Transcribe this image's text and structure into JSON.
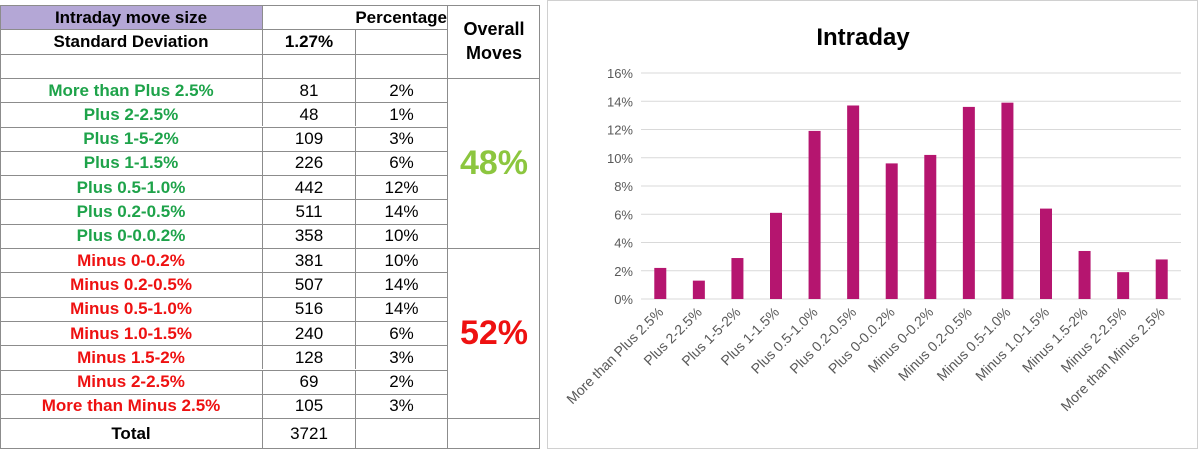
{
  "table": {
    "header": {
      "label": "Intraday move size",
      "percentage": "Percentage",
      "overall": [
        "Overall",
        "Moves"
      ]
    },
    "std_dev": {
      "label": "Standard Deviation",
      "value": "1.27%"
    },
    "rows": [
      {
        "label": "More than Plus 2.5%",
        "count": "81",
        "pct": "2%",
        "side": "plus"
      },
      {
        "label": "Plus 2-2.5%",
        "count": "48",
        "pct": "1%",
        "side": "plus"
      },
      {
        "label": "Plus 1-5-2%",
        "count": "109",
        "pct": "3%",
        "side": "plus"
      },
      {
        "label": "Plus 1-1.5%",
        "count": "226",
        "pct": "6%",
        "side": "plus"
      },
      {
        "label": "Plus 0.5-1.0%",
        "count": "442",
        "pct": "12%",
        "side": "plus"
      },
      {
        "label": "Plus 0.2-0.5%",
        "count": "511",
        "pct": "14%",
        "side": "plus"
      },
      {
        "label": "Plus 0-0.0.2%",
        "count": "358",
        "pct": "10%",
        "side": "plus"
      },
      {
        "label": "Minus 0-0.2%",
        "count": "381",
        "pct": "10%",
        "side": "minus"
      },
      {
        "label": "Minus 0.2-0.5%",
        "count": "507",
        "pct": "14%",
        "side": "minus"
      },
      {
        "label": "Minus 0.5-1.0%",
        "count": "516",
        "pct": "14%",
        "side": "minus"
      },
      {
        "label": "Minus 1.0-1.5%",
        "count": "240",
        "pct": "6%",
        "side": "minus"
      },
      {
        "label": "Minus 1.5-2%",
        "count": "128",
        "pct": "3%",
        "side": "minus"
      },
      {
        "label": "Minus 2-2.5%",
        "count": "69",
        "pct": "2%",
        "side": "minus"
      },
      {
        "label": "More than Minus 2.5%",
        "count": "105",
        "pct": "3%",
        "side": "minus"
      }
    ],
    "overall_plus": "48%",
    "overall_minus": "52%",
    "total": {
      "label": "Total",
      "value": "3721"
    }
  },
  "colors": {
    "plus": "#1ea34a",
    "minus": "#ee1111",
    "bar": "#b5156f",
    "header_bg": "#b4a7d6"
  },
  "chart_data": {
    "type": "bar",
    "title": "Intraday",
    "categories": [
      "More than Plus 2.5%",
      "Plus 2-2.5%",
      "Plus 1-5-2%",
      "Plus 1-1.5%",
      "Plus 0.5-1.0%",
      "Plus 0.2-0.5%",
      "Plus 0-0.0.2%",
      "Minus 0-0.2%",
      "Minus 0.2-0.5%",
      "Minus 0.5-1.0%",
      "Minus 1.0-1.5%",
      "Minus 1.5-2%",
      "Minus 2-2.5%",
      "More than Minus 2.5%"
    ],
    "values": [
      2.2,
      1.3,
      2.9,
      6.1,
      11.9,
      13.7,
      9.6,
      10.2,
      13.6,
      13.9,
      6.4,
      3.4,
      1.9,
      2.8
    ],
    "ylim": [
      0,
      16
    ],
    "yticks": [
      "0%",
      "2%",
      "4%",
      "6%",
      "8%",
      "10%",
      "12%",
      "14%",
      "16%"
    ],
    "grid": true,
    "legend": false
  }
}
